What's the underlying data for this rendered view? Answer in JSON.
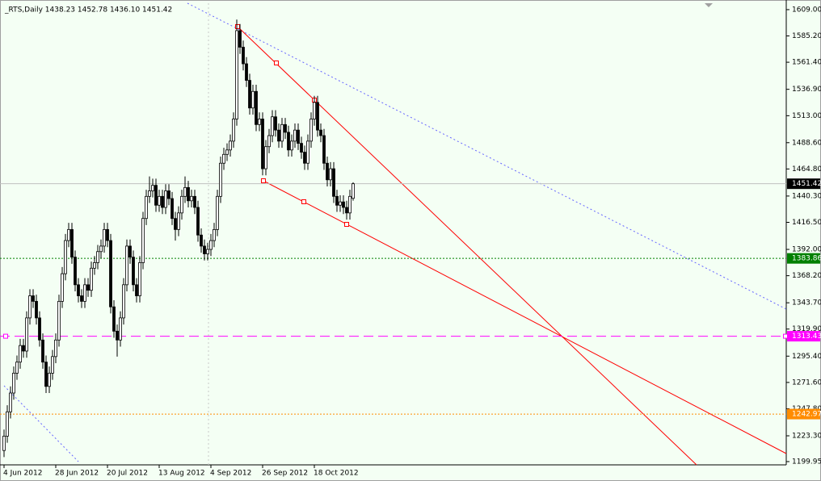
{
  "chart_data": {
    "type": "candlestick",
    "title": "_RTS,Daily 1438.23 1452.78 1436.10 1451.42",
    "categories": [
      "4 Jun 2012",
      null,
      null,
      null,
      null,
      null,
      null,
      null,
      null,
      null,
      null,
      null,
      null,
      null,
      null,
      null,
      "28 Jun 2012",
      null,
      null,
      null,
      null,
      null,
      null,
      null,
      null,
      null,
      null,
      null,
      null,
      null,
      null,
      null,
      "20 Jul 2012",
      null,
      null,
      null,
      null,
      null,
      null,
      null,
      null,
      null,
      null,
      null,
      null,
      null,
      null,
      null,
      "13 Aug 2012",
      null,
      null,
      null,
      null,
      null,
      null,
      null,
      null,
      null,
      null,
      null,
      null,
      null,
      null,
      null,
      "4 Sep 2012",
      null,
      null,
      null,
      null,
      null,
      null,
      null,
      null,
      null,
      null,
      null,
      null,
      null,
      null,
      null,
      "26 Sep 2012",
      null,
      null,
      null,
      null,
      null,
      null,
      null,
      null,
      null,
      null,
      null,
      null,
      null,
      null,
      null,
      "18 Oct 2012",
      null,
      null,
      null,
      null,
      null,
      null,
      null,
      null,
      null,
      null,
      null,
      null
    ],
    "open": [
      1210,
      1223,
      1245,
      1262,
      1280,
      1290,
      1305,
      1300,
      1330,
      1350,
      1345,
      1330,
      1310,
      1290,
      1268,
      1280,
      1295,
      1310,
      1345,
      1370,
      1400,
      1410,
      1385,
      1360,
      1350,
      1345,
      1360,
      1355,
      1375,
      1380,
      1390,
      1395,
      1410,
      1400,
      1340,
      1318,
      1310,
      1330,
      1360,
      1395,
      1385,
      1360,
      1350,
      1380,
      1420,
      1440,
      1445,
      1450,
      1432,
      1440,
      1430,
      1445,
      1438,
      1420,
      1410,
      1425,
      1440,
      1448,
      1436,
      1440,
      1430,
      1405,
      1395,
      1388,
      1392,
      1400,
      1410,
      1440,
      1470,
      1478,
      1482,
      1490,
      1510,
      1590,
      1575,
      1560,
      1545,
      1520,
      1535,
      1505,
      1510,
      1465,
      1485,
      1495,
      1512,
      1500,
      1490,
      1505,
      1498,
      1482,
      1490,
      1500,
      1488,
      1480,
      1470,
      1490,
      1510,
      1525,
      1500,
      1495,
      1470,
      1455,
      1465,
      1440,
      1432,
      1435,
      1430,
      1425,
      1438.23
    ],
    "high": [
      1229,
      1251,
      1268,
      1286,
      1296,
      1311,
      1311,
      1336,
      1356,
      1356,
      1351,
      1336,
      1316,
      1296,
      1286,
      1301,
      1316,
      1351,
      1376,
      1406,
      1416,
      1416,
      1391,
      1366,
      1356,
      1366,
      1366,
      1381,
      1386,
      1396,
      1401,
      1416,
      1416,
      1406,
      1346,
      1324,
      1336,
      1366,
      1401,
      1401,
      1391,
      1366,
      1386,
      1426,
      1446,
      1458,
      1456,
      1456,
      1446,
      1446,
      1451,
      1451,
      1444,
      1426,
      1431,
      1446,
      1458,
      1454,
      1446,
      1446,
      1436,
      1411,
      1401,
      1398,
      1406,
      1416,
      1446,
      1476,
      1484,
      1488,
      1496,
      1516,
      1600,
      1596,
      1581,
      1566,
      1551,
      1541,
      1541,
      1516,
      1516,
      1491,
      1501,
      1518,
      1518,
      1506,
      1511,
      1511,
      1504,
      1496,
      1506,
      1506,
      1494,
      1486,
      1496,
      1516,
      1531,
      1531,
      1506,
      1501,
      1476,
      1471,
      1471,
      1446,
      1441,
      1441,
      1436,
      1446,
      1452.78
    ],
    "low": [
      1204,
      1217,
      1239,
      1256,
      1274,
      1284,
      1294,
      1294,
      1324,
      1339,
      1324,
      1304,
      1284,
      1262,
      1262,
      1274,
      1289,
      1304,
      1339,
      1364,
      1394,
      1379,
      1354,
      1344,
      1339,
      1339,
      1349,
      1349,
      1369,
      1374,
      1384,
      1389,
      1394,
      1334,
      1312,
      1295,
      1304,
      1324,
      1354,
      1379,
      1354,
      1344,
      1344,
      1374,
      1414,
      1434,
      1439,
      1426,
      1426,
      1424,
      1424,
      1432,
      1414,
      1400,
      1404,
      1419,
      1434,
      1430,
      1430,
      1424,
      1399,
      1389,
      1382,
      1382,
      1386,
      1394,
      1404,
      1434,
      1464,
      1472,
      1476,
      1484,
      1504,
      1569,
      1554,
      1539,
      1514,
      1514,
      1499,
      1499,
      1459,
      1459,
      1479,
      1489,
      1494,
      1484,
      1484,
      1492,
      1476,
      1476,
      1484,
      1482,
      1474,
      1464,
      1464,
      1484,
      1504,
      1494,
      1489,
      1464,
      1449,
      1449,
      1434,
      1426,
      1426,
      1424,
      1419,
      1419,
      1436.1
    ],
    "close": [
      1223,
      1245,
      1262,
      1280,
      1290,
      1305,
      1300,
      1330,
      1350,
      1345,
      1330,
      1310,
      1290,
      1268,
      1280,
      1295,
      1310,
      1345,
      1370,
      1400,
      1410,
      1385,
      1360,
      1350,
      1345,
      1360,
      1355,
      1375,
      1380,
      1390,
      1395,
      1410,
      1400,
      1340,
      1318,
      1310,
      1330,
      1360,
      1395,
      1385,
      1360,
      1350,
      1380,
      1420,
      1440,
      1445,
      1450,
      1432,
      1440,
      1430,
      1445,
      1438,
      1420,
      1410,
      1425,
      1440,
      1448,
      1436,
      1440,
      1430,
      1405,
      1395,
      1388,
      1392,
      1400,
      1410,
      1440,
      1470,
      1478,
      1482,
      1490,
      1510,
      1590,
      1575,
      1560,
      1545,
      1520,
      1535,
      1505,
      1510,
      1465,
      1485,
      1495,
      1512,
      1500,
      1490,
      1505,
      1498,
      1482,
      1490,
      1500,
      1488,
      1480,
      1470,
      1490,
      1510,
      1525,
      1500,
      1495,
      1470,
      1455,
      1465,
      1440,
      1432,
      1435,
      1430,
      1425,
      1440,
      1451.42
    ],
    "up_color": "#ffffff",
    "down_color": "#000000",
    "wick_color": "#000000",
    "ylim": [
      1197,
      1614.8
    ],
    "yticks": [
      {
        "value": 1609,
        "label": "1609.00"
      },
      {
        "value": 1585.2,
        "label": "1585.20"
      },
      {
        "value": 1561.4,
        "label": "1561.40"
      },
      {
        "value": 1536.9,
        "label": "1536.90"
      },
      {
        "value": 1513,
        "label": "1513.00"
      },
      {
        "value": 1488.6,
        "label": "1488.60"
      },
      {
        "value": 1464.8,
        "label": "1464.80"
      },
      {
        "value": 1440.3,
        "label": "1440.30"
      },
      {
        "value": 1416.5,
        "label": "1416.50"
      },
      {
        "value": 1392,
        "label": "1392.00"
      },
      {
        "value": 1368.2,
        "label": "1368.20"
      },
      {
        "value": 1343.7,
        "label": "1343.70"
      },
      {
        "value": 1319.9,
        "label": "1319.90"
      },
      {
        "value": 1295.4,
        "label": "1295.40"
      },
      {
        "value": 1271.6,
        "label": "1271.60"
      },
      {
        "value": 1247.8,
        "label": "1247.80"
      },
      {
        "value": 1223.3,
        "label": "1223.30"
      },
      {
        "value": 1199.95,
        "label": "1199.95"
      }
    ],
    "levels": [
      {
        "value": 1451.42,
        "color": "#c0c0c0",
        "style": "solid",
        "label_bg": "#000000",
        "label_color": "#ffffff"
      },
      {
        "value": 1383.86,
        "color": "#008000",
        "style": "dotted",
        "label_bg": "#008000",
        "label_color": "#ffffff"
      },
      {
        "value": 1313.43,
        "color": "#ff00ff",
        "style": "dashed",
        "label_bg": "#ff00ff",
        "label_color": "#ffffff"
      },
      {
        "value": 1242.97,
        "color": "#ff8c00",
        "style": "dotted",
        "label_bg": "#ff8c00",
        "label_color": "#ffffff"
      }
    ]
  }
}
